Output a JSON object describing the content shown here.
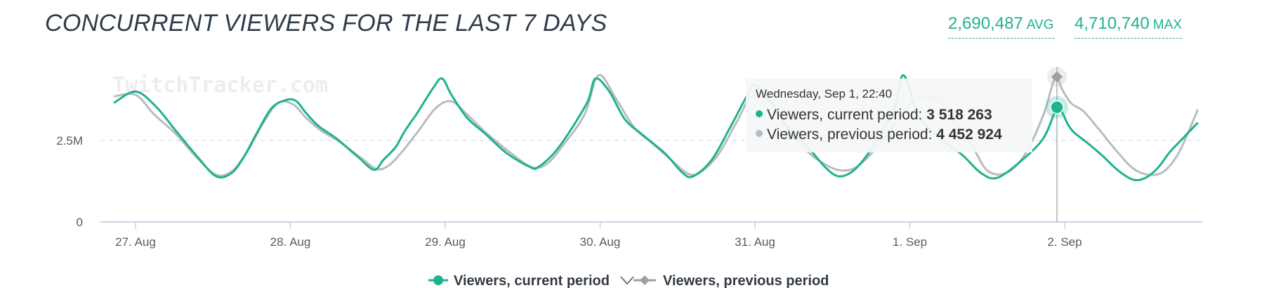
{
  "header": {
    "title": "CONCURRENT VIEWERS FOR THE LAST 7 DAYS",
    "avg_value": "2,690,487",
    "avg_unit": "AVG",
    "max_value": "4,710,740",
    "max_unit": "MAX"
  },
  "watermark": "TwitchTracker.com",
  "colors": {
    "current": "#1fb28f",
    "previous": "#b8bcc0",
    "accent": "#1fb28f"
  },
  "tooltip": {
    "date": "Wednesday, Sep 1, 22:40",
    "current_label": "Viewers, current period: ",
    "current_value": "3 518 263",
    "previous_label": "Viewers, previous period: ",
    "previous_value": "4 452 924"
  },
  "legend": {
    "current": "Viewers, current period",
    "previous": "Viewers, previous period"
  },
  "chart_data": {
    "type": "line",
    "title": "CONCURRENT VIEWERS FOR THE LAST 7 DAYS",
    "x_ticks": [
      "27. Aug",
      "28. Aug",
      "29. Aug",
      "30. Aug",
      "31. Aug",
      "1. Sep",
      "2. Sep"
    ],
    "y_ticks": [
      "0",
      "2.5M"
    ],
    "y_tick_values": [
      0,
      2500000
    ],
    "ylim": [
      0,
      5000000
    ],
    "x_unit": "days since 27. Aug 00:00",
    "xlim": [
      -0.16,
      6.92
    ],
    "grid": "dashed horizontal at 2.5M",
    "legend_position": "bottom-center",
    "series": [
      {
        "name": "Viewers, current period",
        "x": [
          -0.14,
          0.0,
          0.13,
          0.26,
          0.4,
          0.52,
          0.62,
          0.7,
          0.78,
          0.88,
          0.98,
          1.04,
          1.1,
          1.18,
          1.3,
          1.44,
          1.54,
          1.6,
          1.68,
          1.74,
          1.82,
          1.92,
          1.98,
          2.04,
          2.14,
          2.26,
          2.4,
          2.55,
          2.6,
          2.7,
          2.8,
          2.92,
          2.97,
          3.06,
          3.16,
          3.28,
          3.42,
          3.53,
          3.6,
          3.72,
          3.84,
          3.94,
          4.0,
          4.1,
          4.22,
          4.34,
          4.46,
          4.54,
          4.62,
          4.7,
          4.8,
          4.9,
          4.96,
          5.06,
          5.2,
          5.34,
          5.46,
          5.56,
          5.7,
          5.86,
          5.95,
          5.98,
          6.02,
          6.06,
          6.14,
          6.24,
          6.34,
          6.44,
          6.52,
          6.6,
          6.68,
          6.76,
          6.86
        ],
        "y": [
          3650000,
          4000000,
          3550000,
          2800000,
          2000000,
          1400000,
          1500000,
          2000000,
          2700000,
          3500000,
          3750000,
          3700000,
          3350000,
          2950000,
          2550000,
          1980000,
          1600000,
          1900000,
          2300000,
          2800000,
          3350000,
          4100000,
          4400000,
          3900000,
          3200000,
          2700000,
          2100000,
          1680000,
          1680000,
          2100000,
          2750000,
          3700000,
          4400000,
          4000000,
          3150000,
          2650000,
          2100000,
          1520000,
          1400000,
          1900000,
          2900000,
          3800000,
          4200000,
          3700000,
          2850000,
          2300000,
          1650000,
          1400000,
          1520000,
          1900000,
          2600000,
          3500000,
          4500000,
          3250000,
          2550000,
          2050000,
          1500000,
          1350000,
          1800000,
          2550000,
          3518263,
          3400000,
          3000000,
          2750000,
          2450000,
          2050000,
          1600000,
          1300000,
          1350000,
          1650000,
          2150000,
          2550000,
          3050000
        ]
      },
      {
        "name": "Viewers, previous period",
        "x": [
          -0.14,
          0.0,
          0.12,
          0.26,
          0.4,
          0.52,
          0.62,
          0.72,
          0.82,
          0.92,
          1.02,
          1.1,
          1.2,
          1.32,
          1.46,
          1.56,
          1.64,
          1.72,
          1.82,
          1.94,
          2.04,
          2.14,
          2.26,
          2.4,
          2.56,
          2.66,
          2.76,
          2.9,
          2.99,
          3.1,
          3.22,
          3.34,
          3.46,
          3.56,
          3.64,
          3.76,
          3.88,
          3.98,
          4.1,
          4.22,
          4.34,
          4.46,
          4.56,
          4.66,
          4.78,
          4.92,
          5.04,
          5.16,
          5.28,
          5.4,
          5.5,
          5.62,
          5.74,
          5.86,
          5.94,
          5.98,
          6.04,
          6.12,
          6.22,
          6.34,
          6.44,
          6.54,
          6.64,
          6.74,
          6.86
        ],
        "y": [
          3850000,
          3900000,
          3300000,
          2700000,
          1950000,
          1450000,
          1550000,
          2150000,
          3000000,
          3650000,
          3600000,
          3200000,
          2800000,
          2450000,
          1950000,
          1620000,
          1750000,
          2150000,
          2750000,
          3500000,
          3700000,
          3300000,
          2750000,
          2200000,
          1680000,
          1800000,
          2350000,
          3300000,
          4500000,
          3800000,
          2900000,
          2400000,
          1900000,
          1500000,
          1500000,
          2050000,
          3050000,
          3850000,
          3650000,
          2800000,
          2150000,
          1750000,
          1580000,
          1700000,
          2250000,
          3100000,
          3750000,
          3800000,
          3100000,
          2350000,
          1580000,
          1500000,
          2050000,
          3250000,
          4452924,
          4100000,
          3650000,
          3400000,
          2850000,
          2150000,
          1650000,
          1450000,
          1550000,
          2150000,
          3450000
        ]
      }
    ]
  }
}
